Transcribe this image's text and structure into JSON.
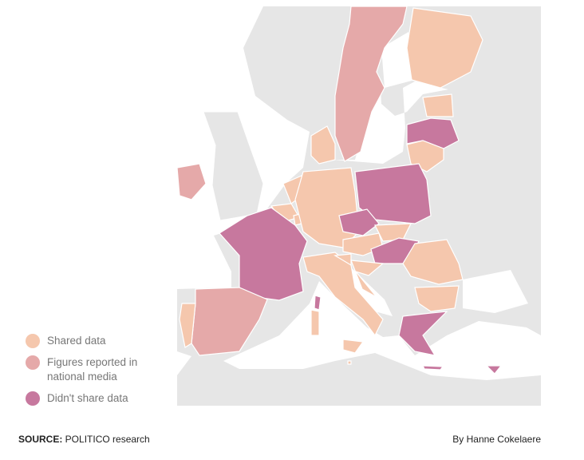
{
  "legend": [
    {
      "key": "shared",
      "label": "Shared data",
      "color": "#f5c7ad"
    },
    {
      "key": "figures",
      "label": "Figures reported in national media",
      "color": "#e5a9a9"
    },
    {
      "key": "none",
      "label": "Didn't share data",
      "color": "#c7789e"
    }
  ],
  "map_colors": {
    "land": "#e6e6e6",
    "sea": "#ffffff",
    "border": "#ffffff"
  },
  "countries": [
    {
      "name": "Sweden",
      "status": "figures"
    },
    {
      "name": "Finland",
      "status": "shared"
    },
    {
      "name": "Estonia",
      "status": "shared"
    },
    {
      "name": "Latvia",
      "status": "none"
    },
    {
      "name": "Lithuania",
      "status": "shared"
    },
    {
      "name": "Ireland",
      "status": "figures"
    },
    {
      "name": "Denmark",
      "status": "shared"
    },
    {
      "name": "Netherlands",
      "status": "shared"
    },
    {
      "name": "Belgium",
      "status": "shared"
    },
    {
      "name": "Luxembourg",
      "status": "shared"
    },
    {
      "name": "Germany",
      "status": "shared"
    },
    {
      "name": "Poland",
      "status": "none"
    },
    {
      "name": "Czechia",
      "status": "none"
    },
    {
      "name": "Austria",
      "status": "shared"
    },
    {
      "name": "Slovakia",
      "status": "shared"
    },
    {
      "name": "Hungary",
      "status": "none"
    },
    {
      "name": "France",
      "status": "none"
    },
    {
      "name": "Spain",
      "status": "figures"
    },
    {
      "name": "Portugal",
      "status": "shared"
    },
    {
      "name": "Italy",
      "status": "shared"
    },
    {
      "name": "Slovenia",
      "status": "shared"
    },
    {
      "name": "Croatia",
      "status": "shared"
    },
    {
      "name": "Romania",
      "status": "shared"
    },
    {
      "name": "Bulgaria",
      "status": "shared"
    },
    {
      "name": "Greece",
      "status": "none"
    },
    {
      "name": "Malta",
      "status": "shared"
    },
    {
      "name": "Cyprus",
      "status": "none"
    }
  ],
  "footer": {
    "source_label": "SOURCE:",
    "source_text": " POLITICO research",
    "byline": "By Hanne Cokelaere"
  }
}
